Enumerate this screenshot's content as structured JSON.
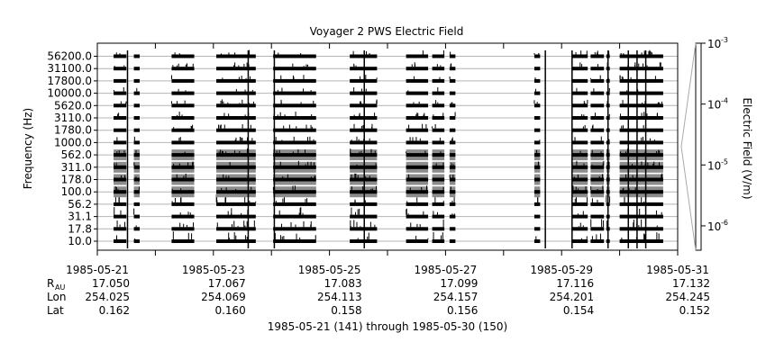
{
  "chart_data": {
    "type": "heatmap",
    "title": "Voyager 2 PWS Electric Field",
    "ylabel": "Frequency (Hz)",
    "frequency_channels_hz": [
      "10.0",
      "17.8",
      "31.1",
      "56.2",
      "100.0",
      "178.0",
      "311.0",
      "562.0",
      "1000.0",
      "1780.0",
      "3110.0",
      "5620.0",
      "10000.0",
      "17800.0",
      "31100.0",
      "56200.0"
    ],
    "x_tick_labels": [
      "1985-05-21",
      "1985-05-23",
      "1985-05-25",
      "1985-05-27",
      "1985-05-29",
      "1985-05-31"
    ],
    "x_range_days": [
      0,
      10
    ],
    "x_axis_note": "1985-05-21 (141) through 1985-05-30 (150)",
    "colorbar": {
      "label": "Electric Field (V/m)",
      "scale": "log",
      "range": [
        "1e-6.4",
        "1e-3"
      ],
      "tick_mantissa": "10",
      "tick_exponents": [
        "-3",
        "-4",
        "-5",
        "-6"
      ]
    },
    "data_segments_days": [
      [
        0.28,
        0.5
      ],
      [
        0.63,
        0.73
      ],
      [
        1.28,
        1.67
      ],
      [
        2.05,
        2.73
      ],
      [
        3.03,
        3.77
      ],
      [
        4.35,
        4.82
      ],
      [
        5.32,
        5.7
      ],
      [
        5.77,
        5.98
      ],
      [
        6.07,
        6.17
      ],
      [
        7.53,
        7.63
      ],
      [
        8.18,
        8.45
      ],
      [
        8.5,
        8.73
      ],
      [
        8.77,
        8.83
      ],
      [
        9.0,
        9.75
      ]
    ],
    "spike_days": [
      0.52,
      2.6,
      3.05,
      4.6,
      7.72,
      8.18,
      8.8,
      9.15,
      9.3,
      9.45
    ],
    "ephemeris": {
      "labels": {
        "r": "R",
        "r_sub": "AU",
        "lon": "Lon",
        "lat": "Lat"
      },
      "columns": [
        {
          "r": "17.050",
          "lon": "254.025",
          "lat": "0.162"
        },
        {
          "r": "17.067",
          "lon": "254.069",
          "lat": "0.160"
        },
        {
          "r": "17.083",
          "lon": "254.113",
          "lat": "0.158"
        },
        {
          "r": "17.099",
          "lon": "254.157",
          "lat": "0.156"
        },
        {
          "r": "17.116",
          "lon": "254.201",
          "lat": "0.154"
        },
        {
          "r": "17.132",
          "lon": "254.245",
          "lat": "0.152"
        }
      ]
    }
  }
}
